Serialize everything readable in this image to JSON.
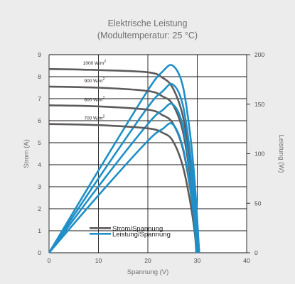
{
  "chart_data": {
    "type": "line",
    "title": "Elektrische Leistung",
    "subtitle": "(Modultemperatur: 25 °C)",
    "xlabel": "Spannung (V)",
    "ylabel_left": "Strom (A)",
    "ylabel_right": "Leistung (W)",
    "xlim": [
      0,
      40
    ],
    "ylim_left": [
      0,
      9
    ],
    "ylim_right": [
      0,
      200
    ],
    "x_ticks": [
      0,
      10,
      20,
      30,
      40
    ],
    "y_left_ticks": [
      0,
      1,
      2,
      3,
      4,
      5,
      6,
      7,
      8,
      9
    ],
    "y_right_ticks": [
      0,
      50,
      100,
      150,
      200
    ],
    "grid": true,
    "legend_placement": "bottom-center",
    "colors": {
      "current": "#5e5a5b",
      "power": "#1e8fc8",
      "grid": "#1a1a1a",
      "background": "#ececec"
    },
    "legend": [
      {
        "label": "Strom/Spannung",
        "kind": "current"
      },
      {
        "label": "Leistung/Spannung",
        "kind": "power"
      }
    ],
    "series": [
      {
        "name": "1000 W/m2",
        "isc": 8.35,
        "voc": 30.4,
        "pmax_w": 189,
        "current": [
          [
            0,
            8.35
          ],
          [
            10,
            8.3
          ],
          [
            20,
            8.2
          ],
          [
            23,
            7.95
          ],
          [
            25,
            7.5
          ],
          [
            27,
            6.3
          ],
          [
            28.5,
            4.3
          ],
          [
            29.5,
            2.4
          ],
          [
            30.4,
            0
          ]
        ],
        "power": [
          [
            0,
            0
          ],
          [
            10,
            83
          ],
          [
            20,
            164
          ],
          [
            23,
            183
          ],
          [
            25,
            189
          ],
          [
            27,
            170
          ],
          [
            28.5,
            122
          ],
          [
            29.5,
            71
          ],
          [
            30.4,
            0
          ]
        ]
      },
      {
        "name": "900 W/m2",
        "isc": 7.55,
        "voc": 30.2,
        "pmax_w": 170,
        "current": [
          [
            0,
            7.55
          ],
          [
            10,
            7.5
          ],
          [
            20,
            7.35
          ],
          [
            23,
            7.1
          ],
          [
            25,
            6.75
          ],
          [
            27,
            5.6
          ],
          [
            28.5,
            3.6
          ],
          [
            29.5,
            1.8
          ],
          [
            30.2,
            0
          ]
        ],
        "power": [
          [
            0,
            0
          ],
          [
            10,
            75
          ],
          [
            20,
            147
          ],
          [
            23,
            163
          ],
          [
            25,
            170
          ],
          [
            27,
            151
          ],
          [
            28.5,
            103
          ],
          [
            29.5,
            53
          ],
          [
            30.2,
            0
          ]
        ]
      },
      {
        "name": "800 W/m2",
        "isc": 6.7,
        "voc": 30.0,
        "pmax_w": 150,
        "current": [
          [
            0,
            6.7
          ],
          [
            10,
            6.65
          ],
          [
            20,
            6.5
          ],
          [
            23,
            6.25
          ],
          [
            25,
            5.9
          ],
          [
            27,
            4.8
          ],
          [
            28.5,
            3.0
          ],
          [
            29.5,
            1.3
          ],
          [
            30.0,
            0
          ]
        ],
        "power": [
          [
            0,
            0
          ],
          [
            10,
            67
          ],
          [
            20,
            130
          ],
          [
            23,
            144
          ],
          [
            25,
            150
          ],
          [
            27,
            130
          ],
          [
            28.5,
            85
          ],
          [
            29.5,
            38
          ],
          [
            30.0,
            0
          ]
        ]
      },
      {
        "name": "700 W/m2",
        "isc": 5.85,
        "voc": 29.8,
        "pmax_w": 130,
        "current": [
          [
            0,
            5.85
          ],
          [
            10,
            5.8
          ],
          [
            20,
            5.65
          ],
          [
            23,
            5.45
          ],
          [
            25,
            5.1
          ],
          [
            27,
            4.0
          ],
          [
            28.5,
            2.4
          ],
          [
            29.5,
            0.9
          ],
          [
            29.8,
            0
          ]
        ],
        "power": [
          [
            0,
            0
          ],
          [
            10,
            58
          ],
          [
            20,
            113
          ],
          [
            23,
            125
          ],
          [
            25,
            130
          ],
          [
            27,
            108
          ],
          [
            28.5,
            68
          ],
          [
            29.5,
            27
          ],
          [
            29.8,
            0
          ]
        ]
      }
    ]
  }
}
